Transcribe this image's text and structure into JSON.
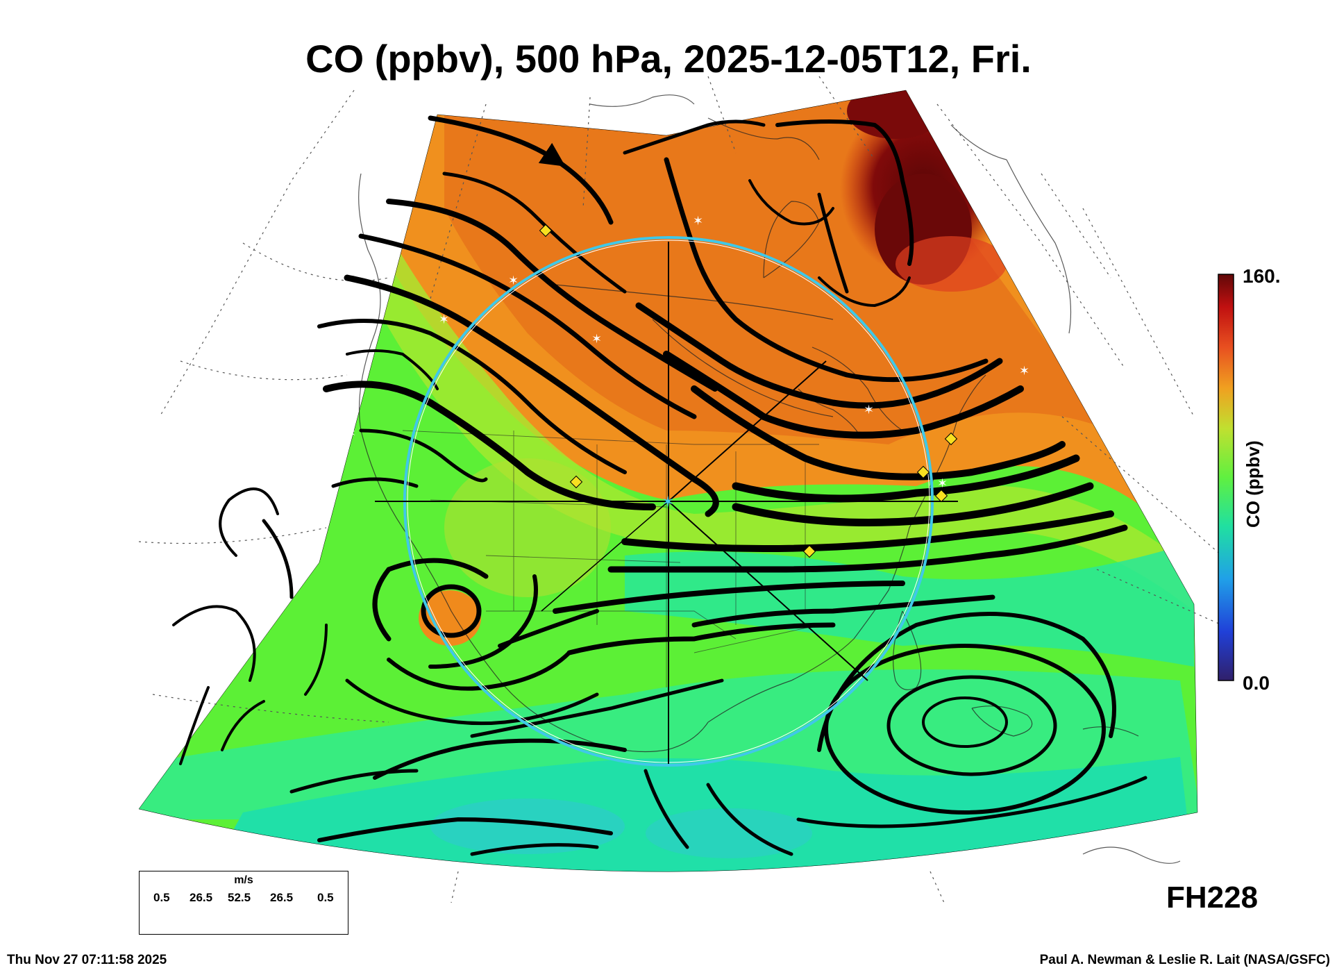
{
  "title": "CO (ppbv), 500 hPa, 2025-12-05T12, Fri.",
  "colorbar": {
    "max_label": "160.",
    "min_label": "0.0",
    "axis_label": "CO (ppbv)",
    "stops": [
      "#30206a",
      "#2040d8",
      "#20a0e8",
      "#20e0a0",
      "#60f040",
      "#c0e030",
      "#f0a020",
      "#e85020",
      "#c01010",
      "#600808"
    ]
  },
  "wind_key": {
    "unit": "m/s",
    "values": [
      "0.5",
      "26.5",
      "52.5",
      "26.5",
      "0.5"
    ]
  },
  "forecast_hour": "FH228",
  "footer": {
    "timestamp": "Thu Nov 27 07:11:58 2025",
    "credit": "Paul A. Newman & Leslie R. Lait (NASA/GSFC)"
  },
  "field_colors": {
    "high_co": "#e8701a",
    "very_high_co": "#6a0808",
    "mid_co": "#70f030",
    "low_co": "#28e890",
    "streamline": "#000000",
    "target_circle": "#40c8e8",
    "site_marker": "#f8e020"
  }
}
